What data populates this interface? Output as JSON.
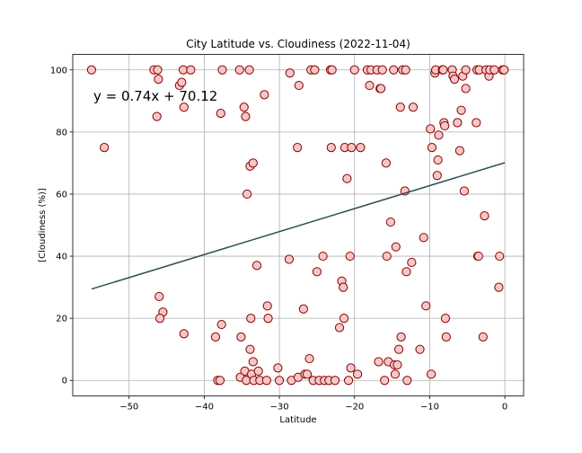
{
  "chart_data": {
    "type": "scatter",
    "title": "City Latitude vs. Cloudiness (2022-11-04)",
    "xlabel": "Latitude",
    "ylabel": "[Cloudiness (%)]",
    "xlim": [
      -57.5,
      2.5
    ],
    "ylim": [
      -5,
      105
    ],
    "xticks": [
      -50,
      -40,
      -30,
      -20,
      -10,
      0
    ],
    "yticks": [
      0,
      20,
      40,
      60,
      80,
      100
    ],
    "grid": true,
    "annotation": "y = 0.74x + 70.12",
    "marker_face_color": "#f4c7c7",
    "marker_edge_color": "#8b0000",
    "regression_line_color": "#2f4f4f",
    "regression": {
      "slope": 0.74,
      "intercept": 70.12,
      "x_range": [
        -55,
        0
      ]
    },
    "points": [
      [
        -55,
        100
      ],
      [
        -53.3,
        75
      ],
      [
        -46.7,
        100
      ],
      [
        -46.2,
        100
      ],
      [
        -46.3,
        85
      ],
      [
        -46.1,
        97
      ],
      [
        -46.0,
        27
      ],
      [
        -45.5,
        22
      ],
      [
        -45.9,
        20
      ],
      [
        -43.3,
        95
      ],
      [
        -43.0,
        96
      ],
      [
        -42.8,
        100
      ],
      [
        -42.7,
        88
      ],
      [
        -42.7,
        15
      ],
      [
        -41.8,
        100
      ],
      [
        -38.5,
        14
      ],
      [
        -38.2,
        0
      ],
      [
        -37.9,
        0
      ],
      [
        -37.8,
        86
      ],
      [
        -37.7,
        18
      ],
      [
        -37.6,
        100
      ],
      [
        -35.3,
        100
      ],
      [
        -35.2,
        1
      ],
      [
        -35.1,
        14
      ],
      [
        -34.7,
        88
      ],
      [
        -34.6,
        3
      ],
      [
        -34.5,
        85
      ],
      [
        -34.4,
        0
      ],
      [
        -34.3,
        60
      ],
      [
        -34.0,
        100
      ],
      [
        -33.9,
        69
      ],
      [
        -33.8,
        20
      ],
      [
        -33.9,
        10
      ],
      [
        -33.7,
        2
      ],
      [
        -33.5,
        70
      ],
      [
        -33.4,
        0
      ],
      [
        -33.5,
        6
      ],
      [
        -33.0,
        37
      ],
      [
        -32.8,
        3
      ],
      [
        -32.6,
        0
      ],
      [
        -32.0,
        92
      ],
      [
        -31.7,
        0
      ],
      [
        -31.6,
        24
      ],
      [
        -31.5,
        20
      ],
      [
        -30.2,
        4
      ],
      [
        -30.0,
        0
      ],
      [
        -28.7,
        39
      ],
      [
        -28.6,
        99
      ],
      [
        -28.4,
        0
      ],
      [
        -27.6,
        75
      ],
      [
        -27.5,
        1
      ],
      [
        -27.4,
        95
      ],
      [
        -26.8,
        23
      ],
      [
        -26.6,
        2
      ],
      [
        -26.3,
        2
      ],
      [
        -26.0,
        7
      ],
      [
        -25.8,
        100
      ],
      [
        -25.5,
        0
      ],
      [
        -25.3,
        100
      ],
      [
        -25.0,
        35
      ],
      [
        -24.7,
        0
      ],
      [
        -24.2,
        40
      ],
      [
        -24.0,
        0
      ],
      [
        -23.4,
        0
      ],
      [
        -23.2,
        100
      ],
      [
        -23.1,
        75
      ],
      [
        -23.0,
        100
      ],
      [
        -22.6,
        0
      ],
      [
        -22.0,
        17
      ],
      [
        -21.7,
        32
      ],
      [
        -21.5,
        30
      ],
      [
        -21.4,
        20
      ],
      [
        -21.3,
        75
      ],
      [
        -21.0,
        65
      ],
      [
        -20.8,
        0
      ],
      [
        -20.6,
        40
      ],
      [
        -20.5,
        4
      ],
      [
        -20.4,
        75
      ],
      [
        -20.0,
        100
      ],
      [
        -19.6,
        2
      ],
      [
        -19.2,
        75
      ],
      [
        -18.3,
        100
      ],
      [
        -18.0,
        95
      ],
      [
        -17.8,
        100
      ],
      [
        -17.0,
        100
      ],
      [
        -16.8,
        6
      ],
      [
        -16.6,
        94
      ],
      [
        -16.5,
        94
      ],
      [
        -16.3,
        100
      ],
      [
        -16.0,
        0
      ],
      [
        -15.8,
        70
      ],
      [
        -15.7,
        40
      ],
      [
        -15.5,
        6
      ],
      [
        -15.2,
        51
      ],
      [
        -14.8,
        100
      ],
      [
        -14.7,
        5
      ],
      [
        -14.6,
        2
      ],
      [
        -14.5,
        43
      ],
      [
        -14.3,
        5
      ],
      [
        -14.1,
        10
      ],
      [
        -13.9,
        88
      ],
      [
        -13.8,
        14
      ],
      [
        -13.6,
        100
      ],
      [
        -13.3,
        61
      ],
      [
        -13.2,
        100
      ],
      [
        -13.1,
        35
      ],
      [
        -13.0,
        0
      ],
      [
        -12.4,
        38
      ],
      [
        -12.2,
        88
      ],
      [
        -11.3,
        10
      ],
      [
        -10.8,
        46
      ],
      [
        -10.5,
        24
      ],
      [
        -9.9,
        81
      ],
      [
        -9.8,
        2
      ],
      [
        -9.7,
        75
      ],
      [
        -9.3,
        99
      ],
      [
        -9.2,
        100
      ],
      [
        -9.0,
        66
      ],
      [
        -8.9,
        71
      ],
      [
        -8.8,
        79
      ],
      [
        -8.3,
        100
      ],
      [
        -8.2,
        100
      ],
      [
        -8.1,
        83
      ],
      [
        -8.0,
        82
      ],
      [
        -7.9,
        20
      ],
      [
        -7.8,
        14
      ],
      [
        -7.0,
        100
      ],
      [
        -6.9,
        98
      ],
      [
        -6.7,
        97
      ],
      [
        -6.3,
        83
      ],
      [
        -6.0,
        74
      ],
      [
        -5.8,
        87
      ],
      [
        -5.6,
        98
      ],
      [
        -5.4,
        61
      ],
      [
        -5.2,
        94
      ],
      [
        -5.2,
        100
      ],
      [
        -3.8,
        83
      ],
      [
        -3.7,
        100
      ],
      [
        -3.6,
        40
      ],
      [
        -3.5,
        40
      ],
      [
        -3.4,
        100
      ],
      [
        -2.9,
        14
      ],
      [
        -2.7,
        53
      ],
      [
        -2.5,
        100
      ],
      [
        -2.1,
        98
      ],
      [
        -2.0,
        100
      ],
      [
        -1.4,
        100
      ],
      [
        -0.8,
        30
      ],
      [
        -0.7,
        40
      ],
      [
        -0.3,
        100
      ],
      [
        -0.1,
        100
      ]
    ]
  }
}
